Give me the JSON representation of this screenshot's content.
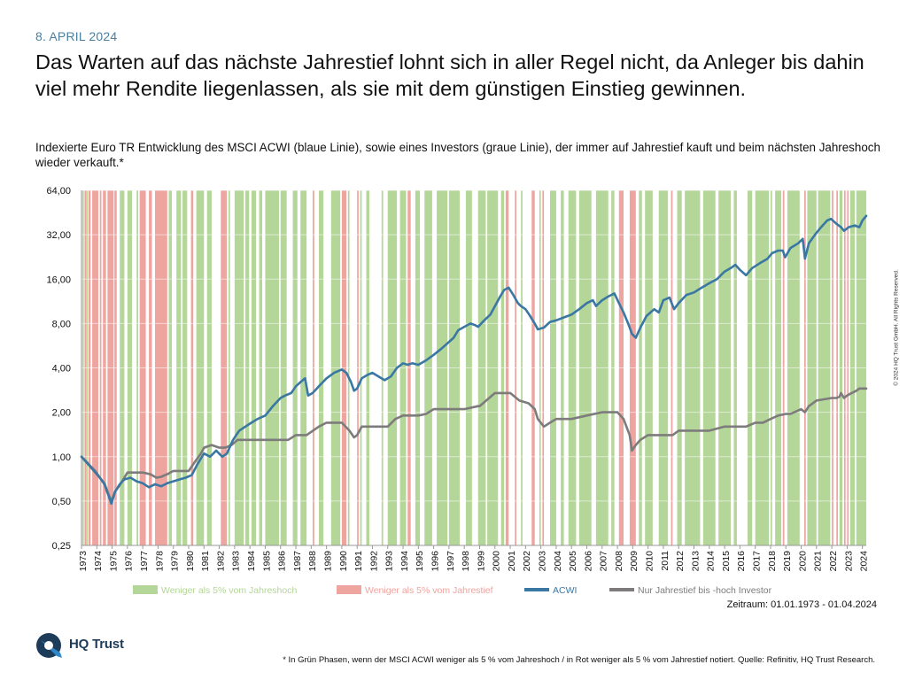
{
  "header": {
    "date": "8. APRIL 2024",
    "headline": "Das Warten auf das nächste Jahrestief lohnt sich in aller Regel nicht, da Anleger bis dahin viel mehr Rendite liegenlassen, als sie mit dem günstigen Einstieg gewinnen.",
    "subtitle": "Indexierte Euro TR Entwicklung des MSCI ACWI (blaue Linie), sowie eines Investors (graue Linie), der immer auf Jahrestief kauft und beim nächsten Jahreshoch wieder verkauft.*"
  },
  "footer": {
    "period": "Zeitraum: 01.01.1973 - 01.04.2024",
    "copyright": "© 2024 HQ Trust GmbH. All Rights Reserved.",
    "brand": "HQ Trust",
    "footnote": "* In Grün Phasen, wenn der MSCI ACWI weniger als 5 % vom Jahreshoch / in Rot weniger als 5 % vom Jahrestief notiert. Quelle: Refinitiv, HQ Trust Research."
  },
  "colors": {
    "acwi": "#3a77a3",
    "investor": "#7d7b7c",
    "green_phase": "#b4d699",
    "red_phase": "#eea49f",
    "grid": "#d8d8d8"
  },
  "chart_data": {
    "type": "line",
    "y_scale": "log2",
    "ylim": [
      0.25,
      64
    ],
    "y_ticks": [
      "0,25",
      "0,50",
      "1,00",
      "2,00",
      "4,00",
      "8,00",
      "16,00",
      "32,00",
      "64,00"
    ],
    "y_tick_values": [
      0.25,
      0.5,
      1,
      2,
      4,
      8,
      16,
      32,
      64
    ],
    "x_range": [
      1973.0,
      2024.25
    ],
    "x_ticks": [
      "1973",
      "1974",
      "1975",
      "1976",
      "1977",
      "1978",
      "1979",
      "1980",
      "1981",
      "1982",
      "1983",
      "1984",
      "1985",
      "1986",
      "1987",
      "1988",
      "1989",
      "1990",
      "1991",
      "1992",
      "1993",
      "1994",
      "1995",
      "1996",
      "1997",
      "1998",
      "1999",
      "2000",
      "2001",
      "2002",
      "2003",
      "2004",
      "2005",
      "2006",
      "2007",
      "2008",
      "2009",
      "2010",
      "2011",
      "2012",
      "2013",
      "2014",
      "2015",
      "2016",
      "2017",
      "2018",
      "2019",
      "2020",
      "2021",
      "2022",
      "2023",
      "2024"
    ],
    "legend": [
      {
        "name": "Weniger als 5% vom Jahreshoch",
        "kind": "area",
        "color": "#b4d699"
      },
      {
        "name": "Weniger als 5% vom Jahrestief",
        "kind": "area",
        "color": "#eea49f"
      },
      {
        "name": "ACWI",
        "kind": "line",
        "color": "#3a77a3"
      },
      {
        "name": "Nur Jahrestief bis -hoch Investor",
        "kind": "line",
        "color": "#7d7b7c"
      }
    ],
    "green_phases": [
      [
        1973.05,
        1973.15
      ],
      [
        1973.3,
        1973.4
      ],
      [
        1975.5,
        1975.8
      ],
      [
        1976.0,
        1976.3
      ],
      [
        1976.6,
        1976.7
      ],
      [
        1978.7,
        1978.9
      ],
      [
        1979.2,
        1979.5
      ],
      [
        1979.6,
        1979.9
      ],
      [
        1980.5,
        1981.0
      ],
      [
        1981.2,
        1981.5
      ],
      [
        1982.6,
        1982.7
      ],
      [
        1983.0,
        1983.6
      ],
      [
        1983.7,
        1983.95
      ],
      [
        1984.1,
        1984.4
      ],
      [
        1984.6,
        1984.8
      ],
      [
        1985.0,
        1985.9
      ],
      [
        1986.0,
        1986.4
      ],
      [
        1986.8,
        1987.1
      ],
      [
        1987.3,
        1987.7
      ],
      [
        1988.5,
        1988.8
      ],
      [
        1989.3,
        1989.9
      ],
      [
        1990.4,
        1990.5
      ],
      [
        1991.2,
        1991.3
      ],
      [
        1991.6,
        1991.8
      ],
      [
        1992.6,
        1992.7
      ],
      [
        1993.0,
        1993.6
      ],
      [
        1993.8,
        1994.2
      ],
      [
        1994.8,
        1995.1
      ],
      [
        1995.4,
        1995.9
      ],
      [
        1996.2,
        1996.9
      ],
      [
        1997.0,
        1997.7
      ],
      [
        1998.1,
        1998.5
      ],
      [
        1998.9,
        1999.4
      ],
      [
        1999.5,
        2000.2
      ],
      [
        2000.4,
        2000.6
      ],
      [
        2001.7,
        2001.8
      ],
      [
        2002.9,
        2003.0
      ],
      [
        2003.6,
        2004.0
      ],
      [
        2004.3,
        2004.5
      ],
      [
        2004.8,
        2005.3
      ],
      [
        2005.5,
        2006.3
      ],
      [
        2006.6,
        2007.4
      ],
      [
        2007.6,
        2007.8
      ],
      [
        2009.4,
        2009.6
      ],
      [
        2009.8,
        2010.3
      ],
      [
        2010.7,
        2011.3
      ],
      [
        2011.9,
        2012.2
      ],
      [
        2012.4,
        2013.4
      ],
      [
        2013.6,
        2014.4
      ],
      [
        2014.6,
        2015.4
      ],
      [
        2015.6,
        2015.8
      ],
      [
        2016.5,
        2016.8
      ],
      [
        2017.0,
        2017.9
      ],
      [
        2018.0,
        2018.1
      ],
      [
        2018.3,
        2018.7
      ],
      [
        2019.1,
        2019.9
      ],
      [
        2020.4,
        2021.0
      ],
      [
        2021.1,
        2021.9
      ],
      [
        2022.5,
        2022.7
      ],
      [
        2023.2,
        2023.5
      ],
      [
        2023.6,
        2024.25
      ]
    ],
    "red_phases": [
      [
        1973.2,
        1973.3
      ],
      [
        1973.45,
        1973.6
      ],
      [
        1973.7,
        1974.1
      ],
      [
        1974.2,
        1974.3
      ],
      [
        1974.4,
        1974.6
      ],
      [
        1974.7,
        1975.1
      ],
      [
        1975.15,
        1975.3
      ],
      [
        1976.8,
        1977.2
      ],
      [
        1977.4,
        1977.6
      ],
      [
        1977.8,
        1978.6
      ],
      [
        1980.15,
        1980.3
      ],
      [
        1982.1,
        1982.5
      ],
      [
        1988.1,
        1988.2
      ],
      [
        1990.0,
        1990.3
      ],
      [
        1991.0,
        1991.1
      ],
      [
        1994.3,
        1994.5
      ],
      [
        2000.7,
        2000.9
      ],
      [
        2001.3,
        2001.4
      ],
      [
        2002.4,
        2002.6
      ],
      [
        2003.1,
        2003.2
      ],
      [
        2008.1,
        2008.4
      ],
      [
        2008.8,
        2009.2
      ],
      [
        2011.5,
        2011.6
      ],
      [
        2018.8,
        2018.9
      ],
      [
        2020.2,
        2020.3
      ],
      [
        2022.0,
        2022.1
      ],
      [
        2022.3,
        2022.4
      ],
      [
        2022.8,
        2022.9
      ],
      [
        2023.0,
        2023.1
      ]
    ],
    "series": [
      {
        "name": "ACWI",
        "x": [
          1973.0,
          1973.3,
          1973.6,
          1973.9,
          1974.2,
          1974.5,
          1974.75,
          1974.95,
          1975.2,
          1975.5,
          1975.8,
          1976.2,
          1976.6,
          1977.0,
          1977.4,
          1977.8,
          1978.2,
          1978.6,
          1979.0,
          1979.4,
          1979.8,
          1980.2,
          1980.6,
          1981.0,
          1981.4,
          1981.8,
          1982.2,
          1982.5,
          1982.9,
          1983.3,
          1983.7,
          1984.1,
          1984.5,
          1985.0,
          1985.5,
          1986.0,
          1986.3,
          1986.7,
          1987.0,
          1987.3,
          1987.6,
          1987.8,
          1988.1,
          1988.5,
          1989.0,
          1989.5,
          1990.0,
          1990.3,
          1990.6,
          1990.8,
          1991.0,
          1991.3,
          1991.7,
          1992.0,
          1992.4,
          1992.8,
          1993.2,
          1993.6,
          1994.0,
          1994.3,
          1994.6,
          1995.0,
          1995.5,
          1996.0,
          1996.5,
          1997.0,
          1997.3,
          1997.6,
          1998.0,
          1998.4,
          1998.7,
          1998.9,
          1999.3,
          1999.7,
          2000.0,
          2000.3,
          2000.6,
          2000.9,
          2001.2,
          2001.5,
          2001.7,
          2002.0,
          2002.3,
          2002.6,
          2002.8,
          2003.2,
          2003.6,
          2004.0,
          2004.5,
          2005.0,
          2005.5,
          2006.0,
          2006.4,
          2006.6,
          2007.0,
          2007.4,
          2007.8,
          2008.1,
          2008.4,
          2008.7,
          2008.95,
          2009.2,
          2009.5,
          2009.9,
          2010.4,
          2010.7,
          2011.0,
          2011.4,
          2011.7,
          2012.0,
          2012.5,
          2013.0,
          2013.5,
          2014.0,
          2014.5,
          2015.0,
          2015.4,
          2015.7,
          2016.0,
          2016.4,
          2016.8,
          2017.3,
          2017.8,
          2018.1,
          2018.5,
          2018.8,
          2018.95,
          2019.3,
          2019.8,
          2020.1,
          2020.25,
          2020.5,
          2020.9,
          2021.3,
          2021.7,
          2021.95,
          2022.3,
          2022.6,
          2022.8,
          2023.1,
          2023.5,
          2023.8,
          2024.0,
          2024.25
        ],
        "values": [
          1.0,
          0.92,
          0.85,
          0.78,
          0.72,
          0.65,
          0.55,
          0.48,
          0.58,
          0.65,
          0.7,
          0.72,
          0.68,
          0.66,
          0.62,
          0.65,
          0.63,
          0.66,
          0.68,
          0.7,
          0.72,
          0.75,
          0.9,
          1.05,
          1.0,
          1.1,
          1.0,
          1.05,
          1.3,
          1.5,
          1.6,
          1.7,
          1.8,
          1.9,
          2.2,
          2.5,
          2.6,
          2.7,
          3.0,
          3.2,
          3.4,
          2.6,
          2.7,
          3.0,
          3.4,
          3.7,
          3.9,
          3.7,
          3.2,
          2.8,
          2.9,
          3.4,
          3.6,
          3.7,
          3.5,
          3.3,
          3.5,
          4.0,
          4.3,
          4.2,
          4.3,
          4.2,
          4.5,
          4.9,
          5.4,
          6.0,
          6.4,
          7.2,
          7.6,
          8.0,
          7.8,
          7.6,
          8.4,
          9.2,
          10.5,
          12.0,
          13.5,
          14.0,
          12.5,
          11.0,
          10.5,
          10.0,
          9.0,
          8.0,
          7.3,
          7.5,
          8.2,
          8.4,
          8.8,
          9.2,
          10.0,
          11.0,
          11.5,
          10.5,
          11.5,
          12.2,
          12.8,
          11.0,
          9.5,
          8.0,
          6.8,
          6.4,
          7.5,
          9.0,
          10.0,
          9.5,
          11.5,
          12.0,
          10.0,
          11.0,
          12.5,
          13.0,
          14.0,
          15.0,
          16.0,
          18.0,
          19.0,
          20.0,
          18.5,
          17.0,
          19.0,
          20.5,
          22.0,
          24.0,
          25.0,
          25.0,
          22.5,
          26.0,
          28.0,
          30.0,
          22.0,
          28.0,
          32.0,
          36.0,
          40.0,
          41.0,
          38.0,
          36.0,
          34.0,
          36.0,
          37.0,
          36.0,
          40.0,
          43.0
        ]
      },
      {
        "name": "Nur Jahrestief bis -hoch Investor",
        "x": [
          1973.0,
          1973.3,
          1973.6,
          1973.9,
          1974.2,
          1974.5,
          1974.75,
          1974.95,
          1975.2,
          1975.5,
          1976.0,
          1977.0,
          1977.5,
          1977.9,
          1978.2,
          1978.6,
          1979.0,
          1979.5,
          1980.0,
          1980.4,
          1980.8,
          1981.0,
          1981.5,
          1982.0,
          1982.4,
          1982.8,
          1983.2,
          1984.0,
          1985.0,
          1986.0,
          1986.5,
          1987.0,
          1987.6,
          1987.7,
          1988.5,
          1989.0,
          1989.3,
          1990.0,
          1990.5,
          1990.8,
          1991.0,
          1991.3,
          1992.0,
          1993.0,
          1993.5,
          1994.0,
          1995.0,
          1995.5,
          1996.0,
          1997.0,
          1998.0,
          1998.9,
          1999.0,
          2000.0,
          2001.0,
          2001.3,
          2001.6,
          2002.2,
          2002.6,
          2002.8,
          2003.2,
          2003.6,
          2004.0,
          2005.0,
          2006.0,
          2007.0,
          2008.0,
          2008.4,
          2008.8,
          2008.95,
          2009.2,
          2009.5,
          2010.0,
          2011.0,
          2011.6,
          2012.0,
          2013.0,
          2014.0,
          2015.0,
          2016.0,
          2016.4,
          2017.0,
          2017.5,
          2018.0,
          2018.5,
          2019.0,
          2019.3,
          2020.0,
          2020.25,
          2020.5,
          2021.0,
          2022.0,
          2022.3,
          2022.5,
          2022.6,
          2022.8,
          2023.0,
          2023.3,
          2023.6,
          2023.8,
          2024.25
        ],
        "values": [
          1.0,
          0.93,
          0.86,
          0.8,
          0.72,
          0.66,
          0.56,
          0.5,
          0.58,
          0.64,
          0.78,
          0.78,
          0.76,
          0.72,
          0.73,
          0.76,
          0.8,
          0.8,
          0.8,
          0.92,
          1.05,
          1.15,
          1.2,
          1.15,
          1.15,
          1.2,
          1.3,
          1.3,
          1.3,
          1.3,
          1.3,
          1.4,
          1.4,
          1.4,
          1.6,
          1.7,
          1.7,
          1.7,
          1.5,
          1.35,
          1.4,
          1.6,
          1.6,
          1.6,
          1.8,
          1.9,
          1.9,
          1.95,
          2.1,
          2.1,
          2.1,
          2.2,
          2.2,
          2.7,
          2.7,
          2.55,
          2.4,
          2.3,
          2.1,
          1.8,
          1.6,
          1.7,
          1.8,
          1.8,
          1.9,
          2.0,
          2.0,
          1.8,
          1.4,
          1.1,
          1.2,
          1.3,
          1.4,
          1.4,
          1.4,
          1.5,
          1.5,
          1.5,
          1.6,
          1.6,
          1.6,
          1.7,
          1.7,
          1.8,
          1.9,
          1.95,
          1.95,
          2.1,
          2.0,
          2.2,
          2.4,
          2.5,
          2.5,
          2.55,
          2.7,
          2.5,
          2.6,
          2.7,
          2.8,
          2.9,
          2.9
        ]
      }
    ]
  }
}
